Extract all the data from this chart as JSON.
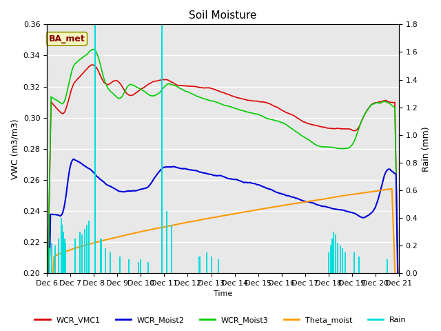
{
  "title": "Soil Moisture",
  "xlabel": "Time",
  "ylabel_left": "VWC (m3/m3)",
  "ylabel_right": "Rain (mm)",
  "ylim_left": [
    0.2,
    0.36
  ],
  "ylim_right": [
    0.0,
    1.8
  ],
  "bg_color": "#e8e8e8",
  "annotation_text": "BA_met",
  "annotation_color": "#8B0000",
  "annotation_bg": "#f5f5c0",
  "annotation_border": "#999900",
  "xtick_labels": [
    "Dec 6",
    "Dec 7",
    "Dec 8",
    "Dec 9",
    "Dec 10",
    "Dec 11",
    "Dec 12",
    "Dec 13",
    "Dec 14",
    "Dec 15",
    "Dec 16",
    "Dec 17",
    "Dec 18",
    "Dec 19",
    "Dec 20",
    "Dec 21"
  ],
  "series_colors": {
    "WCR_VMC1": "#dd0000",
    "WCR_Moist2": "#0000dd",
    "WCR_Moist3": "#00cc00",
    "Theta_moist": "#ff9900",
    "Rain": "#00dddd"
  }
}
